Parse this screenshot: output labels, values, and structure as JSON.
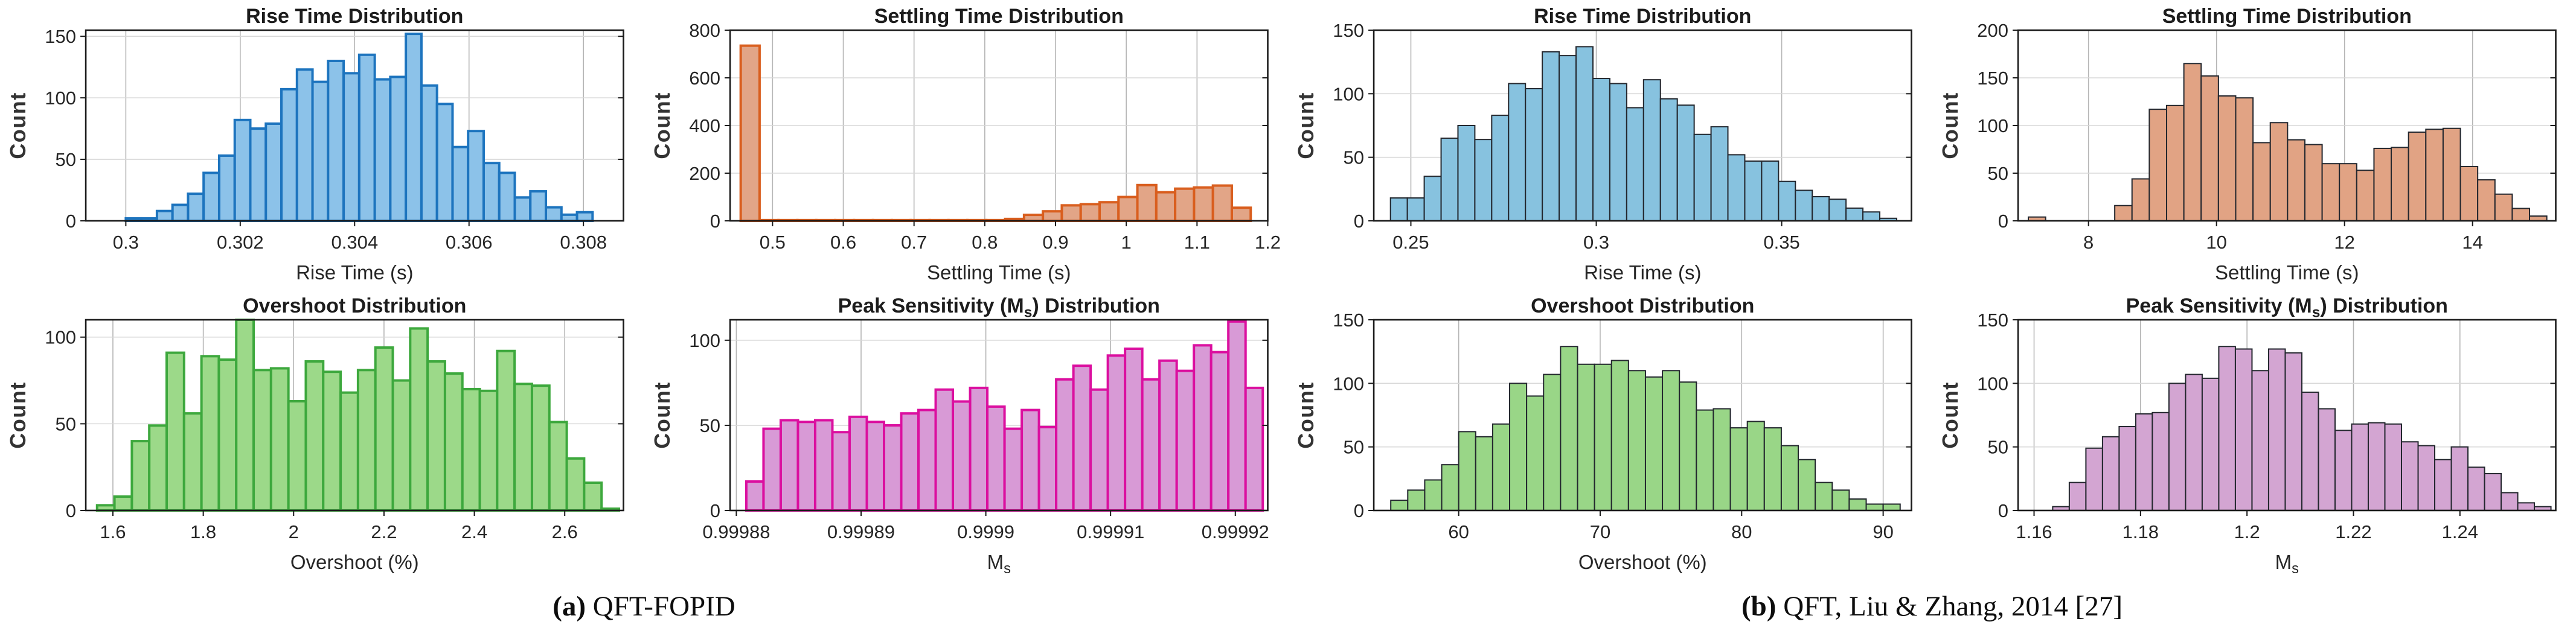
{
  "figure": {
    "captions": [
      {
        "label": "(a)",
        "text": " QFT-FOPID"
      },
      {
        "label": "(b)",
        "text": " QFT, Liu & Zhang, 2014 [27]"
      }
    ]
  },
  "chart_data": [
    {
      "id": "a-rise-time",
      "type": "bar",
      "title": {
        "pre": "Rise Time Distribution",
        "sub": "",
        "post": ""
      },
      "xlabel": {
        "pre": "Rise Time (s)",
        "sub": "",
        "post": ""
      },
      "ylabel": "Count",
      "fill": "#8CC2E9",
      "edge": "#1D74BE",
      "edge_width": 4,
      "xlim": [
        0.2993,
        0.3087
      ],
      "ylim": [
        0,
        155
      ],
      "xticks": [
        0.3,
        0.302,
        0.304,
        0.306,
        0.308
      ],
      "xtick_labels": [
        "0.3",
        "0.302",
        "0.304",
        "0.306",
        "0.308"
      ],
      "yticks": [
        0,
        50,
        100,
        150
      ],
      "bin_start": 0.3,
      "bin_width": 0.000272,
      "values": [
        2,
        2,
        8,
        13,
        22,
        39,
        53,
        82,
        75,
        79,
        107,
        123,
        113,
        130,
        120,
        135,
        115,
        117,
        152,
        110,
        95,
        60,
        73,
        47,
        39,
        19,
        24,
        11,
        5,
        7
      ],
      "grid": true,
      "legend": "none"
    },
    {
      "id": "a-settling-time",
      "type": "bar",
      "title": {
        "pre": "Settling Time Distribution",
        "sub": "",
        "post": ""
      },
      "xlabel": {
        "pre": "Settling Time (s)",
        "sub": "",
        "post": ""
      },
      "ylabel": "Count",
      "fill": "#E2A587",
      "edge": "#D95E1E",
      "edge_width": 4,
      "xlim": [
        0.44,
        1.2
      ],
      "ylim": [
        0,
        800
      ],
      "xticks": [
        0.5,
        0.6,
        0.7,
        0.8,
        0.9,
        1,
        1.1,
        1.2
      ],
      "xtick_labels": [
        "0.5",
        "0.6",
        "0.7",
        "0.8",
        "0.9",
        "1",
        "1.1",
        "1.2"
      ],
      "yticks": [
        0,
        200,
        400,
        600,
        800
      ],
      "bin_start": 0.455,
      "bin_width": 0.0267,
      "values": [
        735,
        3,
        3,
        3,
        3,
        3,
        3,
        3,
        3,
        3,
        3,
        3,
        3,
        3,
        8,
        25,
        40,
        65,
        70,
        78,
        100,
        150,
        120,
        135,
        140,
        148,
        55
      ],
      "grid": true,
      "legend": "none"
    },
    {
      "id": "b-rise-time",
      "type": "bar",
      "title": {
        "pre": "Rise Time Distribution",
        "sub": "",
        "post": ""
      },
      "xlabel": {
        "pre": "Rise Time (s)",
        "sub": "",
        "post": ""
      },
      "ylabel": "Count",
      "fill": "#87C2DF",
      "edge": "#23272E",
      "edge_width": 2,
      "xlim": [
        0.24,
        0.385
      ],
      "ylim": [
        0,
        150
      ],
      "xticks": [
        0.25,
        0.3,
        0.35
      ],
      "xtick_labels": [
        "0.25",
        "0.3",
        "0.35"
      ],
      "yticks": [
        0,
        50,
        100,
        150
      ],
      "bin_start": 0.2445,
      "bin_width": 0.00455,
      "values": [
        18,
        18,
        35,
        65,
        75,
        64,
        83,
        108,
        104,
        133,
        130,
        137,
        112,
        108,
        89,
        111,
        96,
        91,
        68,
        74,
        52,
        47,
        47,
        31,
        24,
        19,
        17,
        10,
        7,
        2
      ],
      "grid": true,
      "legend": "none"
    },
    {
      "id": "b-settling-time",
      "type": "bar",
      "title": {
        "pre": "Settling Time Distribution",
        "sub": "",
        "post": ""
      },
      "xlabel": {
        "pre": "Settling Time (s)",
        "sub": "",
        "post": ""
      },
      "ylabel": "Count",
      "fill": "#E1A384",
      "edge": "#23272E",
      "edge_width": 2,
      "xlim": [
        6.9,
        15.3
      ],
      "ylim": [
        0,
        200
      ],
      "xticks": [
        8,
        10,
        12,
        14
      ],
      "xtick_labels": [
        "8",
        "10",
        "12",
        "14"
      ],
      "yticks": [
        0,
        50,
        100,
        150,
        200
      ],
      "bin_start": 7.06,
      "bin_width": 0.27,
      "values": [
        4,
        0,
        0,
        0,
        0,
        16,
        44,
        117,
        121,
        165,
        152,
        131,
        129,
        82,
        103,
        85,
        80,
        60,
        60,
        53,
        76,
        77,
        93,
        96,
        97,
        57,
        43,
        28,
        13,
        5
      ],
      "grid": true,
      "legend": "none"
    },
    {
      "id": "a-overshoot",
      "type": "bar",
      "title": {
        "pre": "Overshoot Distribution",
        "sub": "",
        "post": ""
      },
      "xlabel": {
        "pre": "Overshoot (%)",
        "sub": "",
        "post": ""
      },
      "ylabel": "Count",
      "fill": "#9CD989",
      "edge": "#3DA83D",
      "edge_width": 4,
      "xlim": [
        1.54,
        2.73
      ],
      "ylim": [
        0,
        110
      ],
      "xticks": [
        1.6,
        1.8,
        2,
        2.2,
        2.4,
        2.6
      ],
      "xtick_labels": [
        "1.6",
        "1.8",
        "2",
        "2.2",
        "2.4",
        "2.6"
      ],
      "yticks": [
        0,
        50,
        100
      ],
      "bin_start": 1.565,
      "bin_width": 0.0385,
      "values": [
        3,
        8,
        40,
        49,
        91,
        56,
        89,
        87,
        110,
        81,
        82,
        63,
        86,
        80,
        68,
        81,
        94,
        75,
        105,
        86,
        79,
        70,
        69,
        92,
        73,
        72,
        51,
        30,
        16,
        1
      ],
      "grid": true,
      "legend": "none"
    },
    {
      "id": "a-peak-sensitivity",
      "type": "bar",
      "title": {
        "pre": "Peak Sensitivity (M",
        "sub": "s",
        "post": ") Distribution"
      },
      "xlabel": {
        "pre": "M",
        "sub": "s",
        "post": ""
      },
      "ylabel": "Count",
      "fill": "#D89AD6",
      "edge": "#DB0F9F",
      "edge_width": 4,
      "xlim": [
        0.9998795,
        0.9999226
      ],
      "ylim": [
        0,
        112
      ],
      "xticks": [
        0.99988,
        0.99989,
        0.9999,
        0.99991,
        0.99992
      ],
      "xtick_labels": [
        "0.99988",
        "0.99989",
        "0.9999",
        "0.99991",
        "0.99992"
      ],
      "yticks": [
        0,
        50,
        100
      ],
      "bin_start": 0.9998808,
      "bin_width": 1.38e-06,
      "values": [
        17,
        48,
        53,
        52,
        53,
        46,
        55,
        52,
        50,
        57,
        59,
        71,
        64,
        72,
        61,
        48,
        59,
        49,
        77,
        85,
        71,
        91,
        95,
        77,
        88,
        82,
        97,
        93,
        111,
        72
      ],
      "grid": true,
      "legend": "none"
    },
    {
      "id": "b-overshoot",
      "type": "bar",
      "title": {
        "pre": "Overshoot Distribution",
        "sub": "",
        "post": ""
      },
      "xlabel": {
        "pre": "Overshoot (%)",
        "sub": "",
        "post": ""
      },
      "ylabel": "Count",
      "fill": "#99D687",
      "edge": "#23272E",
      "edge_width": 2,
      "xlim": [
        54,
        92
      ],
      "ylim": [
        0,
        150
      ],
      "xticks": [
        60,
        70,
        80,
        90
      ],
      "xtick_labels": [
        "60",
        "70",
        "80",
        "90"
      ],
      "yticks": [
        0,
        50,
        100,
        150
      ],
      "bin_start": 55.2,
      "bin_width": 1.2,
      "values": [
        8,
        16,
        24,
        36,
        62,
        58,
        68,
        100,
        90,
        107,
        129,
        115,
        115,
        118,
        110,
        105,
        110,
        101,
        79,
        80,
        65,
        70,
        65,
        51,
        40,
        22,
        16,
        9,
        5,
        5
      ],
      "grid": true,
      "legend": "none"
    },
    {
      "id": "b-peak-sensitivity",
      "type": "bar",
      "title": {
        "pre": "Peak Sensitivity (M",
        "sub": "s",
        "post": ") Distribution"
      },
      "xlabel": {
        "pre": "M",
        "sub": "s",
        "post": ""
      },
      "ylabel": "Count",
      "fill": "#D3A5D2",
      "edge": "#23272E",
      "edge_width": 2,
      "xlim": [
        1.157,
        1.258
      ],
      "ylim": [
        0,
        150
      ],
      "xticks": [
        1.16,
        1.18,
        1.2,
        1.22,
        1.24
      ],
      "xtick_labels": [
        "1.16",
        "1.18",
        "1.2",
        "1.22",
        "1.24"
      ],
      "yticks": [
        0,
        50,
        100,
        150
      ],
      "bin_start": 1.1635,
      "bin_width": 0.00312,
      "values": [
        3,
        22,
        49,
        58,
        66,
        76,
        77,
        100,
        107,
        104,
        129,
        127,
        110,
        127,
        124,
        93,
        80,
        63,
        68,
        69,
        68,
        54,
        51,
        40,
        50,
        34,
        29,
        14,
        6,
        3
      ],
      "grid": true,
      "legend": "none"
    }
  ],
  "style": {
    "axis_color": "#1a1a1a",
    "tick_label_color": "#262626",
    "title_color": "#1c1c1c",
    "ylabel_color": "#333333",
    "xgrid_color": "#b5b5b5",
    "ygrid_color": "#d8d8d8"
  }
}
